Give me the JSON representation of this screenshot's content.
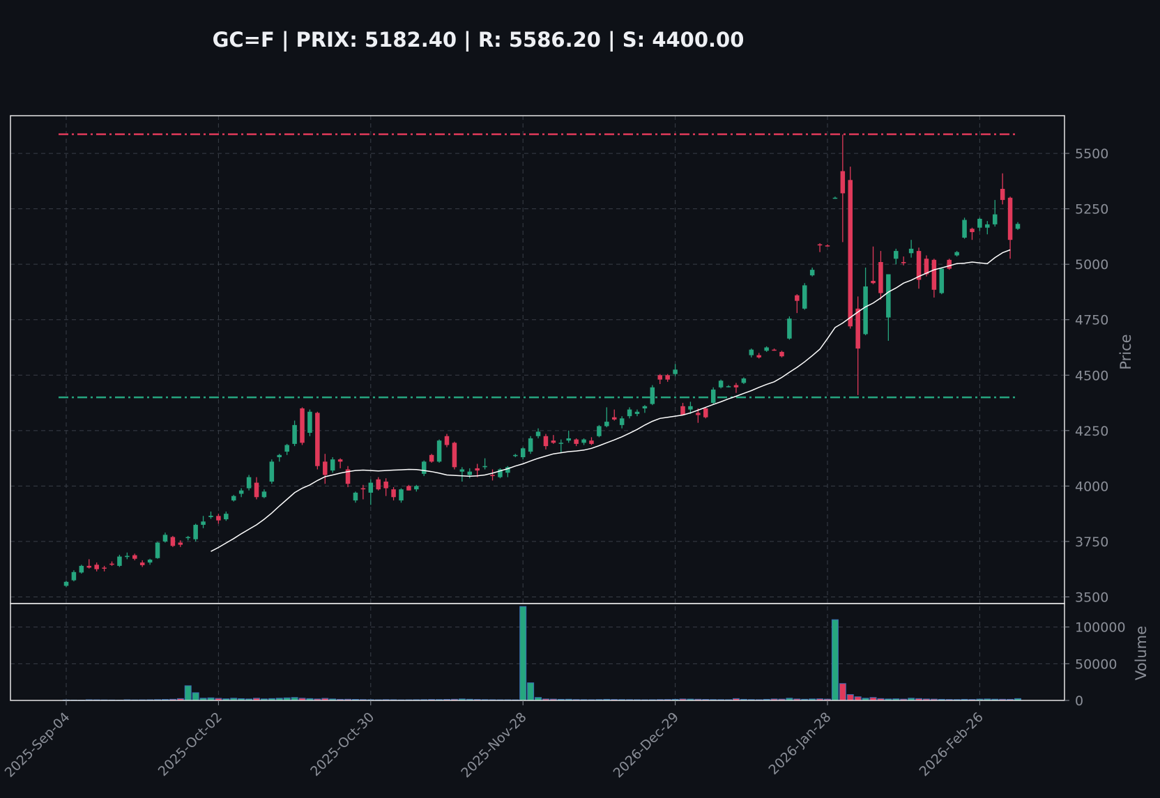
{
  "chart_data": {
    "type": "candlestick",
    "title": "GC=F | PRIX: 5182.40 | R: 5586.20 | S: 4400.00",
    "colors": {
      "background": "#0e1117",
      "up": "#26a67f",
      "down": "#e0395a",
      "ma": "#ffffff",
      "resistance": "#e0395a",
      "support": "#26a67f",
      "volume_edge": "#3b6fb6",
      "frame": "#e6e6e6",
      "grid": "#3a3f48",
      "text": "#8b8f98"
    },
    "price_axis": {
      "label": "Price",
      "ylim": [
        3470,
        5670
      ],
      "ticks": [
        3500,
        3750,
        4000,
        4250,
        4500,
        4750,
        5000,
        5250,
        5500
      ]
    },
    "volume_axis": {
      "label": "Volume",
      "ylim": [
        0,
        132000
      ],
      "ticks": [
        0,
        50000,
        100000
      ],
      "tick_labels": [
        "0",
        "50000",
        "100000"
      ]
    },
    "x_ticks": [
      {
        "index": 0,
        "label": "2025-Sep-04"
      },
      {
        "index": 20,
        "label": "2025-Oct-02"
      },
      {
        "index": 40,
        "label": "2025-Oct-30"
      },
      {
        "index": 60,
        "label": "2025-Nov-28"
      },
      {
        "index": 80,
        "label": "2026-Dec-29"
      },
      {
        "index": 100,
        "label": "2026-Jan-28"
      },
      {
        "index": 120,
        "label": "2026-Feb-26"
      }
    ],
    "levels": {
      "resistance": 5586.2,
      "support": 4400.0
    },
    "ma_start_index": 19,
    "ma_values": [
      3705,
      3723,
      3743,
      3763,
      3785,
      3805,
      3825,
      3850,
      3878,
      3910,
      3940,
      3970,
      3990,
      4005,
      4025,
      4042,
      4050,
      4058,
      4065,
      4070,
      4072,
      4070,
      4068,
      4070,
      4072,
      4073,
      4075,
      4074,
      4070,
      4065,
      4058,
      4050,
      4048,
      4046,
      4044,
      4046,
      4050,
      4058,
      4068,
      4078,
      4090,
      4100,
      4113,
      4125,
      4135,
      4145,
      4150,
      4155,
      4158,
      4162,
      4170,
      4182,
      4195,
      4208,
      4222,
      4238,
      4255,
      4275,
      4292,
      4305,
      4310,
      4315,
      4320,
      4330,
      4342,
      4355,
      4368,
      4380,
      4393,
      4405,
      4418,
      4430,
      4445,
      4458,
      4470,
      4490,
      4513,
      4535,
      4560,
      4588,
      4617,
      4665,
      4715,
      4735,
      4760,
      4785,
      4808,
      4825,
      4848,
      4875,
      4893,
      4915,
      4928,
      4945,
      4960,
      4975,
      4984,
      4993,
      5003,
      5005,
      5010,
      5006,
      5003,
      5030,
      5052,
      5065
    ],
    "candles": [
      [
        3550,
        3573,
        3545,
        3568,
        600
      ],
      [
        3575,
        3620,
        3570,
        3612,
        500
      ],
      [
        3610,
        3645,
        3605,
        3640,
        400
      ],
      [
        3640,
        3670,
        3628,
        3632,
        900
      ],
      [
        3645,
        3655,
        3615,
        3625,
        800
      ],
      [
        3632,
        3640,
        3615,
        3628,
        700
      ],
      [
        3650,
        3660,
        3640,
        3645,
        600
      ],
      [
        3640,
        3690,
        3635,
        3682,
        500
      ],
      [
        3680,
        3700,
        3670,
        3685,
        900
      ],
      [
        3688,
        3695,
        3665,
        3672,
        700
      ],
      [
        3655,
        3665,
        3635,
        3643,
        800
      ],
      [
        3655,
        3672,
        3645,
        3668,
        900
      ],
      [
        3675,
        3748,
        3672,
        3745,
        1100
      ],
      [
        3750,
        3790,
        3745,
        3780,
        1300
      ],
      [
        3770,
        3775,
        3725,
        3730,
        1600
      ],
      [
        3745,
        3755,
        3725,
        3735,
        2500
      ],
      [
        3765,
        3775,
        3755,
        3770,
        20000
      ],
      [
        3760,
        3830,
        3750,
        3825,
        10500
      ],
      [
        3825,
        3865,
        3810,
        3840,
        3000
      ],
      [
        3860,
        3885,
        3852,
        3866,
        3500
      ],
      [
        3865,
        3875,
        3830,
        3845,
        2800
      ],
      [
        3850,
        3885,
        3843,
        3875,
        2200
      ],
      [
        3935,
        3960,
        3930,
        3955,
        3000
      ],
      [
        3965,
        3990,
        3950,
        3980,
        2400
      ],
      [
        3990,
        4050,
        3980,
        4040,
        2000
      ],
      [
        4015,
        4040,
        3940,
        3950,
        3000
      ],
      [
        3950,
        3985,
        3945,
        3975,
        2100
      ],
      [
        4020,
        4120,
        4010,
        4110,
        2500
      ],
      [
        4130,
        4145,
        4110,
        4140,
        3000
      ],
      [
        4155,
        4190,
        4140,
        4185,
        3500
      ],
      [
        4190,
        4295,
        4180,
        4275,
        4000
      ],
      [
        4350,
        4355,
        4185,
        4195,
        3000
      ],
      [
        4240,
        4345,
        4225,
        4335,
        2500
      ],
      [
        4330,
        4335,
        4075,
        4090,
        2000
      ],
      [
        4110,
        4145,
        4010,
        4050,
        2800
      ],
      [
        4070,
        4130,
        4060,
        4120,
        2000
      ],
      [
        4120,
        4125,
        4080,
        4110,
        1500
      ],
      [
        4075,
        4090,
        3995,
        4010,
        1600
      ],
      [
        3935,
        3975,
        3925,
        3970,
        1400
      ],
      [
        3990,
        4005,
        3940,
        3985,
        1200
      ],
      [
        3970,
        4030,
        3915,
        4015,
        1000
      ],
      [
        4030,
        4040,
        3980,
        3985,
        900
      ],
      [
        4020,
        4035,
        3955,
        3990,
        1100
      ],
      [
        3985,
        3995,
        3935,
        3950,
        1000
      ],
      [
        3935,
        3990,
        3925,
        3985,
        800
      ],
      [
        4000,
        4005,
        3980,
        3980,
        900
      ],
      [
        3985,
        4005,
        3975,
        4000,
        1000
      ],
      [
        4055,
        4115,
        4045,
        4110,
        1100
      ],
      [
        4140,
        4145,
        4105,
        4110,
        1300
      ],
      [
        4110,
        4210,
        4105,
        4205,
        1200
      ],
      [
        4225,
        4235,
        4175,
        4185,
        1400
      ],
      [
        4195,
        4200,
        4075,
        4085,
        1600
      ],
      [
        4065,
        4085,
        4020,
        4075,
        2000
      ],
      [
        4050,
        4080,
        4035,
        4065,
        1600
      ],
      [
        4080,
        4100,
        4040,
        4070,
        1300
      ],
      [
        4085,
        4125,
        4075,
        4090,
        1100
      ],
      [
        4050,
        4075,
        4025,
        4045,
        1000
      ],
      [
        4040,
        4080,
        4035,
        4075,
        900
      ],
      [
        4060,
        4090,
        4040,
        4085,
        900
      ],
      [
        4135,
        4145,
        4130,
        4140,
        800
      ],
      [
        4130,
        4175,
        4120,
        4170,
        128000
      ],
      [
        4155,
        4225,
        4145,
        4215,
        24000
      ],
      [
        4225,
        4260,
        4215,
        4245,
        4000
      ],
      [
        4225,
        4235,
        4165,
        4180,
        2000
      ],
      [
        4205,
        4230,
        4190,
        4195,
        1800
      ],
      [
        4195,
        4210,
        4150,
        4195,
        1500
      ],
      [
        4205,
        4250,
        4195,
        4215,
        1600
      ],
      [
        4210,
        4215,
        4180,
        4190,
        1200
      ],
      [
        4195,
        4215,
        4185,
        4210,
        1100
      ],
      [
        4205,
        4220,
        4185,
        4190,
        1000
      ],
      [
        4225,
        4275,
        4220,
        4270,
        1200
      ],
      [
        4270,
        4355,
        4265,
        4290,
        1500
      ],
      [
        4310,
        4345,
        4295,
        4300,
        1300
      ],
      [
        4275,
        4315,
        4260,
        4305,
        1200
      ],
      [
        4315,
        4355,
        4305,
        4345,
        1100
      ],
      [
        4325,
        4345,
        4315,
        4335,
        1000
      ],
      [
        4350,
        4365,
        4330,
        4360,
        900
      ],
      [
        4370,
        4455,
        4365,
        4445,
        1000
      ],
      [
        4500,
        4505,
        4460,
        4480,
        1200
      ],
      [
        4500,
        4505,
        4470,
        4480,
        1300
      ],
      [
        4505,
        4550,
        4495,
        4525,
        1500
      ],
      [
        4360,
        4375,
        4320,
        4320,
        2000
      ],
      [
        4345,
        4380,
        4325,
        4360,
        1800
      ],
      [
        4330,
        4350,
        4285,
        4320,
        1600
      ],
      [
        4350,
        4355,
        4305,
        4310,
        1400
      ],
      [
        4375,
        4445,
        4370,
        4435,
        1200
      ],
      [
        4445,
        4480,
        4440,
        4475,
        1100
      ],
      [
        4450,
        4455,
        4445,
        4450,
        1000
      ],
      [
        4455,
        4465,
        4420,
        4445,
        2500
      ],
      [
        4465,
        4490,
        4460,
        4485,
        1500
      ],
      [
        4590,
        4620,
        4580,
        4615,
        1200
      ],
      [
        4590,
        4600,
        4575,
        4580,
        1000
      ],
      [
        4610,
        4630,
        4605,
        4625,
        1500
      ],
      [
        4615,
        4620,
        4610,
        4612,
        2000
      ],
      [
        4605,
        4610,
        4580,
        4585,
        1800
      ],
      [
        4665,
        4765,
        4660,
        4755,
        3000
      ],
      [
        4860,
        4865,
        4780,
        4835,
        2000
      ],
      [
        4800,
        4915,
        4795,
        4905,
        1600
      ],
      [
        4950,
        4985,
        4945,
        4975,
        2000
      ],
      [
        5090,
        5095,
        5055,
        5085,
        2200
      ],
      [
        5085,
        5090,
        5080,
        5082,
        1800
      ],
      [
        5300,
        5305,
        5295,
        5300,
        110000
      ],
      [
        5420,
        5585,
        5100,
        5320,
        23000
      ],
      [
        5380,
        5440,
        4710,
        4720,
        8000
      ],
      [
        4800,
        4855,
        4410,
        4620,
        5000
      ],
      [
        4685,
        4985,
        4680,
        4900,
        3000
      ],
      [
        4925,
        5080,
        4910,
        4915,
        4000
      ],
      [
        5010,
        5060,
        4840,
        4870,
        2500
      ],
      [
        4760,
        4955,
        4655,
        4955,
        2000
      ],
      [
        5025,
        5070,
        5000,
        5060,
        2200
      ],
      [
        5010,
        5035,
        4995,
        5005,
        1800
      ],
      [
        5050,
        5110,
        5030,
        5070,
        3000
      ],
      [
        5060,
        5075,
        4890,
        4930,
        2500
      ],
      [
        5025,
        5040,
        4945,
        4955,
        2000
      ],
      [
        5020,
        5025,
        4850,
        4885,
        1800
      ],
      [
        4870,
        4985,
        4865,
        4980,
        1500
      ],
      [
        5020,
        5025,
        4975,
        4980,
        1300
      ],
      [
        5040,
        5060,
        5035,
        5055,
        1200
      ],
      [
        5120,
        5210,
        5115,
        5200,
        1500
      ],
      [
        5160,
        5165,
        5110,
        5145,
        1300
      ],
      [
        5165,
        5210,
        5150,
        5205,
        1800
      ],
      [
        5165,
        5195,
        5135,
        5180,
        2000
      ],
      [
        5180,
        5290,
        5170,
        5225,
        1700
      ],
      [
        5340,
        5410,
        5270,
        5290,
        1600
      ],
      [
        5300,
        5305,
        5025,
        5110,
        1500
      ],
      [
        5160,
        5190,
        5155,
        5182,
        2500
      ]
    ]
  }
}
